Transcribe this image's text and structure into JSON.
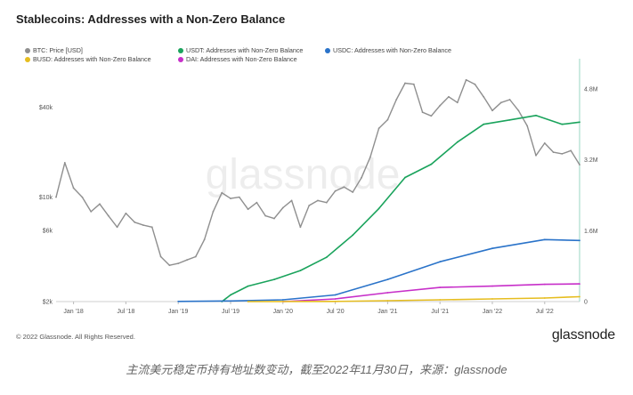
{
  "title": "Stablecoins: Addresses with a Non-Zero Balance",
  "legend": [
    {
      "label": "BTC: Price [USD]",
      "color": "#8f8f8f"
    },
    {
      "label": "USDT: Addresses with Non-Zero Balance",
      "color": "#1aa35c"
    },
    {
      "label": "USDC: Addresses with Non-Zero Balance",
      "color": "#2a73c9"
    },
    {
      "label": "BUSD: Addresses with Non-Zero Balance",
      "color": "#e6bd1f"
    },
    {
      "label": "DAI: Addresses with Non-Zero Balance",
      "color": "#c72fc9"
    }
  ],
  "watermark": "glassnode",
  "footer": "© 2022 Glassnode. All Rights Reserved.",
  "logo": "glassnode",
  "caption": "主流美元稳定币持有地址数变动，截至2022年11月30日，来源：glassnode",
  "chart_data": {
    "type": "line",
    "x_ticks": [
      "Jan '18",
      "Jul '18",
      "Jan '19",
      "Jul '19",
      "Jan '20",
      "Jul '20",
      "Jan '21",
      "Jul '21",
      "Jan '22",
      "Jul '22"
    ],
    "x_range": [
      "2017-11",
      "2022-11"
    ],
    "y_left": {
      "scale": "log",
      "ticks": [
        "$2k",
        "$6k",
        "$10k",
        "$40k"
      ],
      "tick_values": [
        2000,
        6000,
        10000,
        40000
      ],
      "range": [
        2000,
        80000
      ]
    },
    "y_right": {
      "scale": "linear",
      "ticks": [
        "0",
        "1.6M",
        "3.2M",
        "4.8M"
      ],
      "tick_values": [
        0,
        1600000,
        3200000,
        4800000
      ],
      "range": [
        0,
        5400000
      ]
    },
    "series": [
      {
        "name": "BTC: Price [USD]",
        "axis": "left",
        "color": "#8f8f8f",
        "x": [
          "2017-11",
          "2017-12",
          "2018-01",
          "2018-02",
          "2018-03",
          "2018-04",
          "2018-05",
          "2018-06",
          "2018-07",
          "2018-08",
          "2018-09",
          "2018-10",
          "2018-11",
          "2018-12",
          "2019-01",
          "2019-02",
          "2019-03",
          "2019-04",
          "2019-05",
          "2019-06",
          "2019-07",
          "2019-08",
          "2019-09",
          "2019-10",
          "2019-11",
          "2019-12",
          "2020-01",
          "2020-02",
          "2020-03",
          "2020-04",
          "2020-05",
          "2020-06",
          "2020-07",
          "2020-08",
          "2020-09",
          "2020-10",
          "2020-11",
          "2020-12",
          "2021-01",
          "2021-02",
          "2021-03",
          "2021-04",
          "2021-05",
          "2021-06",
          "2021-07",
          "2021-08",
          "2021-09",
          "2021-10",
          "2021-11",
          "2021-12",
          "2022-01",
          "2022-02",
          "2022-03",
          "2022-04",
          "2022-05",
          "2022-06",
          "2022-07",
          "2022-08",
          "2022-09",
          "2022-10",
          "2022-11"
        ],
        "values": [
          10000,
          17000,
          11500,
          10000,
          8000,
          9000,
          7500,
          6300,
          7800,
          6800,
          6500,
          6300,
          4000,
          3500,
          3600,
          3800,
          4000,
          5200,
          8000,
          10700,
          9800,
          10000,
          8300,
          9200,
          7500,
          7200,
          8500,
          9500,
          6300,
          8800,
          9500,
          9200,
          11000,
          11700,
          10800,
          13500,
          18500,
          28900,
          33000,
          45000,
          58000,
          57000,
          37000,
          35000,
          41000,
          47000,
          43000,
          61000,
          57000,
          47000,
          38000,
          43000,
          45000,
          38000,
          30000,
          19000,
          23000,
          20000,
          19500,
          20500,
          16500
        ]
      },
      {
        "name": "USDT: Addresses with Non-Zero Balance",
        "axis": "right",
        "color": "#1aa35c",
        "x": [
          "2019-06",
          "2019-07",
          "2019-09",
          "2019-12",
          "2020-03",
          "2020-06",
          "2020-09",
          "2020-12",
          "2021-03",
          "2021-06",
          "2021-09",
          "2021-12",
          "2022-03",
          "2022-06",
          "2022-09",
          "2022-11"
        ],
        "values": [
          0,
          150000,
          350000,
          500000,
          700000,
          1000000,
          1500000,
          2100000,
          2800000,
          3100000,
          3600000,
          4000000,
          4100000,
          4200000,
          4000000,
          4050000
        ]
      },
      {
        "name": "USDC: Addresses with Non-Zero Balance",
        "axis": "right",
        "color": "#2a73c9",
        "x": [
          "2019-01",
          "2019-07",
          "2020-01",
          "2020-07",
          "2021-01",
          "2021-07",
          "2022-01",
          "2022-07",
          "2022-11"
        ],
        "values": [
          5000,
          15000,
          40000,
          150000,
          500000,
          900000,
          1200000,
          1400000,
          1380000
        ]
      },
      {
        "name": "DAI: Addresses with Non-Zero Balance",
        "axis": "right",
        "color": "#c72fc9",
        "x": [
          "2020-01",
          "2020-07",
          "2021-01",
          "2021-07",
          "2022-01",
          "2022-07",
          "2022-11"
        ],
        "values": [
          0,
          60000,
          200000,
          320000,
          350000,
          390000,
          400000
        ]
      },
      {
        "name": "BUSD: Addresses with Non-Zero Balance",
        "axis": "right",
        "color": "#e6bd1f",
        "x": [
          "2019-09",
          "2020-07",
          "2021-01",
          "2021-07",
          "2022-01",
          "2022-07",
          "2022-11"
        ],
        "values": [
          0,
          5000,
          20000,
          40000,
          60000,
          80000,
          110000
        ]
      }
    ],
    "grid": false,
    "legend_position": "top-left"
  }
}
